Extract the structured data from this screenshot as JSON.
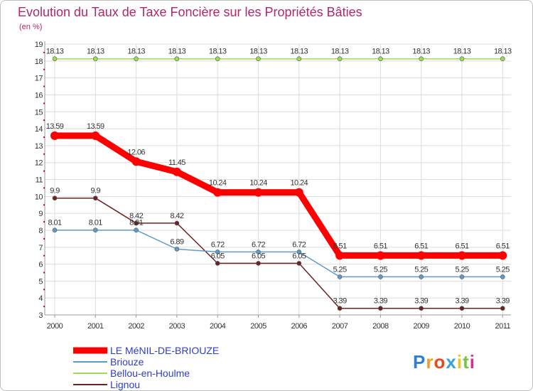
{
  "chart_data": {
    "type": "line",
    "title": "Evolution du Taux de Taxe Foncière sur les Propriétés Bâties",
    "subtitle": "(en %)",
    "x": [
      "2000",
      "2001",
      "2002",
      "2003",
      "2004",
      "2005",
      "2006",
      "2007",
      "2008",
      "2009",
      "2010",
      "2011"
    ],
    "yticks": [
      3,
      4,
      5,
      6,
      7,
      8,
      9,
      10,
      11,
      12,
      13,
      14,
      15,
      16,
      17,
      18,
      19
    ],
    "ylim": [
      3,
      19
    ],
    "grid": true,
    "legend_position": "bottom-left",
    "series": [
      {
        "name": "Bellou-en-Houlme",
        "color": "#99dd55",
        "values": [
          18.13,
          18.13,
          18.13,
          18.13,
          18.13,
          18.13,
          18.13,
          18.13,
          18.13,
          18.13,
          18.13,
          18.13
        ],
        "labels": [
          "18.13",
          "18.13",
          "18.13",
          "18.13",
          "18.13",
          "18.13",
          "18.13",
          "18.13",
          "18.13",
          "18.13",
          "18.13",
          "18.13"
        ]
      },
      {
        "name": "Lignou",
        "color": "#6b2323",
        "values": [
          9.9,
          9.9,
          8.42,
          8.42,
          6.05,
          6.05,
          6.05,
          3.39,
          3.39,
          3.39,
          3.39,
          3.39
        ],
        "labels": [
          "9.9",
          "9.9",
          "8.42",
          "8.42",
          "6.05",
          "6.05",
          "6.05",
          "3.39",
          "3.39",
          "3.39",
          "3.39",
          "3.39"
        ]
      },
      {
        "name": "Briouze",
        "color": "#5f9bc6",
        "values": [
          8.01,
          8.01,
          8.01,
          6.89,
          6.72,
          6.72,
          6.72,
          5.25,
          5.25,
          5.25,
          5.25,
          5.25
        ],
        "labels": [
          "8.01",
          "8.01",
          "8.01",
          "6.89",
          "6.72",
          "6.72",
          "6.72",
          "5.25",
          "5.25",
          "5.25",
          "5.25",
          "5.25"
        ]
      },
      {
        "name": "LE MéNIL-DE-BRIOUZE",
        "color": "#ff0000",
        "values": [
          13.59,
          13.59,
          12.06,
          11.45,
          10.24,
          10.24,
          10.24,
          6.51,
          6.51,
          6.51,
          6.51,
          6.51
        ],
        "labels": [
          "13.59",
          "13.59",
          "12.06",
          "11.45",
          "10.24",
          "10.24",
          "10.24",
          "6.51",
          "6.51",
          "6.51",
          "6.51",
          "6.51"
        ]
      }
    ],
    "legend": [
      "LE MéNIL-DE-BRIOUZE",
      "Briouze",
      "Bellou-en-Houlme",
      "Lignou"
    ]
  },
  "brand": {
    "letters": [
      "P",
      "r",
      "o",
      "x",
      "i",
      "t",
      "i"
    ],
    "colors": [
      "#2f7fd6",
      "#f0a020",
      "#e84a1e",
      "#3aa0e0",
      "#f0c020",
      "#7cc242",
      "#d6328a"
    ]
  }
}
